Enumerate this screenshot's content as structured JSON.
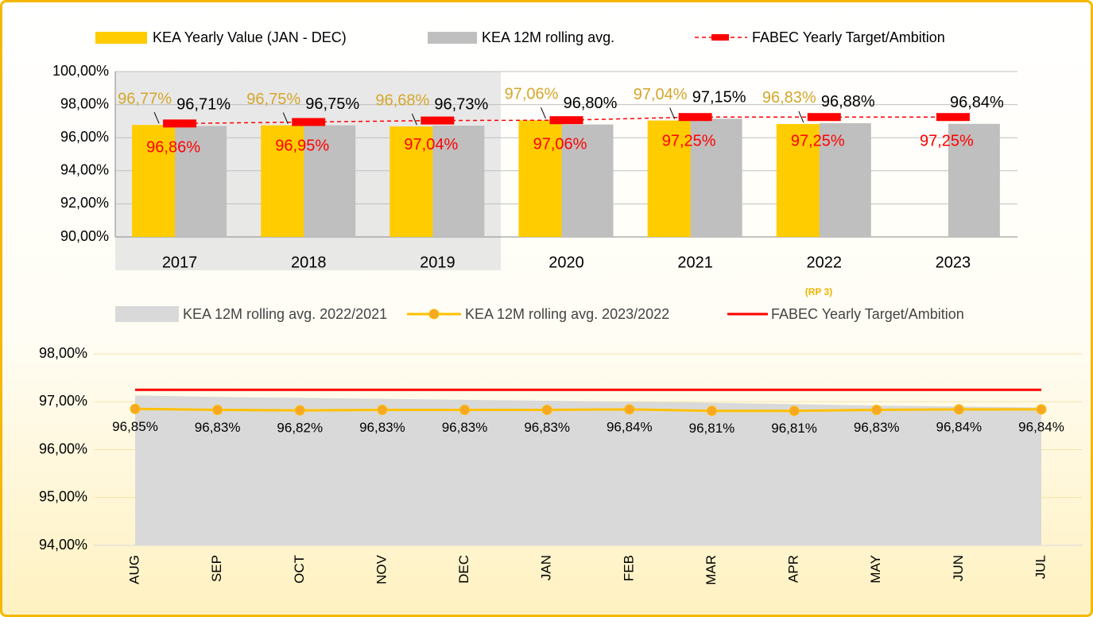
{
  "chart_data": [
    {
      "type": "bar",
      "categories": [
        "2017",
        "2018",
        "2019",
        "2020",
        "2021",
        "2022",
        "2023"
      ],
      "series": [
        {
          "name": "KEA Yearly Value (JAN - DEC)",
          "color": "#ffcc00",
          "values": [
            96.77,
            96.75,
            96.68,
            97.06,
            97.04,
            96.83,
            null
          ],
          "value_labels": [
            "96,77%",
            "96,75%",
            "96,68%",
            "97,06%",
            "97,04%",
            "96,83%",
            null
          ]
        },
        {
          "name": "KEA 12M rolling avg.",
          "color": "#bfbfbf",
          "values": [
            96.71,
            96.75,
            96.73,
            96.8,
            97.15,
            96.88,
            96.84
          ],
          "value_labels": [
            "96,71%",
            "96,75%",
            "96,73%",
            "96,80%",
            "97,15%",
            "96,88%",
            "96,84%"
          ]
        },
        {
          "name": "FABEC Yearly Target/Ambition",
          "type": "line",
          "dashed": true,
          "color": "#ff0000",
          "values": [
            96.86,
            96.95,
            97.04,
            97.06,
            97.25,
            97.25,
            97.25
          ],
          "value_labels": [
            "96,86%",
            "96,95%",
            "97,04%",
            "97,06%",
            "97,25%",
            "97,25%",
            "97,25%"
          ]
        }
      ],
      "ylim": [
        90,
        100
      ],
      "yticks": [
        {
          "value": 90,
          "label": "90,00%"
        },
        {
          "value": 92,
          "label": "92,00%"
        },
        {
          "value": 94,
          "label": "94,00%"
        },
        {
          "value": 96,
          "label": "96,00%"
        },
        {
          "value": 98,
          "label": "98,00%"
        },
        {
          "value": 100,
          "label": "100,00%"
        }
      ],
      "grid": true,
      "annotation": "(RP 3)"
    },
    {
      "type": "line",
      "categories": [
        "AUG",
        "SEP",
        "OCT",
        "NOV",
        "DEC",
        "JAN",
        "FEB",
        "MAR",
        "APR",
        "MAY",
        "JUN",
        "JUL"
      ],
      "series": [
        {
          "name": "KEA 12M rolling avg. 2022/2021",
          "type": "area",
          "color": "#d9d9d9",
          "values": [
            97.13,
            97.1,
            97.08,
            97.06,
            97.04,
            97.02,
            97.0,
            96.98,
            96.95,
            96.92,
            96.9,
            96.88
          ]
        },
        {
          "name": "KEA 12M rolling avg. 2023/2022",
          "color": "#ffc000",
          "marker_color": "#f7a823",
          "values": [
            96.85,
            96.83,
            96.82,
            96.83,
            96.83,
            96.83,
            96.84,
            96.81,
            96.81,
            96.83,
            96.84,
            96.84
          ],
          "value_labels": [
            "96,85%",
            "96,83%",
            "96,82%",
            "96,83%",
            "96,83%",
            "96,83%",
            "96,84%",
            "96,81%",
            "96,81%",
            "96,83%",
            "96,84%",
            "96,84%"
          ]
        },
        {
          "name": "FABEC Yearly Target/Ambition",
          "color": "#ff0000",
          "values": [
            97.25,
            97.25,
            97.25,
            97.25,
            97.25,
            97.25,
            97.25,
            97.25,
            97.25,
            97.25,
            97.25,
            97.25
          ]
        }
      ],
      "ylim": [
        94,
        98
      ],
      "yticks": [
        {
          "value": 94,
          "label": "94,00%"
        },
        {
          "value": 95,
          "label": "95,00%"
        },
        {
          "value": 96,
          "label": "96,00%"
        },
        {
          "value": 97,
          "label": "97,00%"
        },
        {
          "value": 98,
          "label": "98,00%"
        }
      ],
      "grid": true
    }
  ]
}
